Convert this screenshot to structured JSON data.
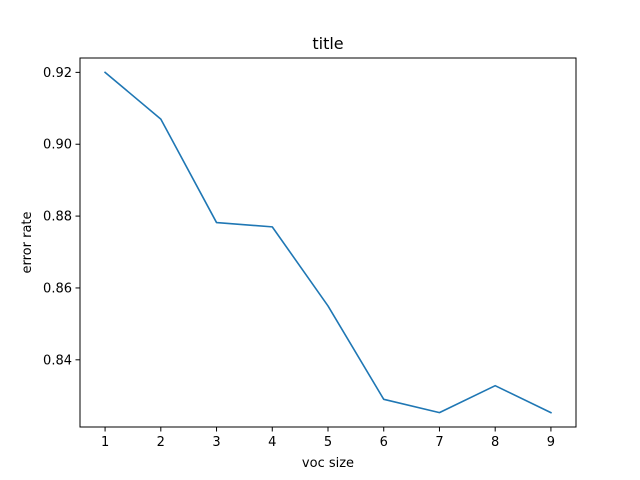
{
  "chart_data": {
    "type": "line",
    "title": "title",
    "xlabel": "voc size",
    "ylabel": "error rate",
    "x": [
      1,
      2,
      3,
      4,
      5,
      6,
      7,
      8,
      9
    ],
    "series": [
      {
        "values": [
          0.92,
          0.907,
          0.8782,
          0.877,
          0.855,
          0.829,
          0.8253,
          0.8328,
          0.8253
        ]
      }
    ],
    "xlim": [
      0.55,
      9.45
    ],
    "ylim": [
      0.8213,
      0.924
    ],
    "xticks": [
      1,
      2,
      3,
      4,
      5,
      6,
      7,
      8,
      9
    ],
    "yticks": [
      0.84,
      0.86,
      0.88,
      0.9,
      0.92
    ],
    "ytick_labels": [
      "0.84",
      "0.86",
      "0.88",
      "0.90",
      "0.92"
    ],
    "grid": false,
    "line_color": "#1f77b4"
  }
}
